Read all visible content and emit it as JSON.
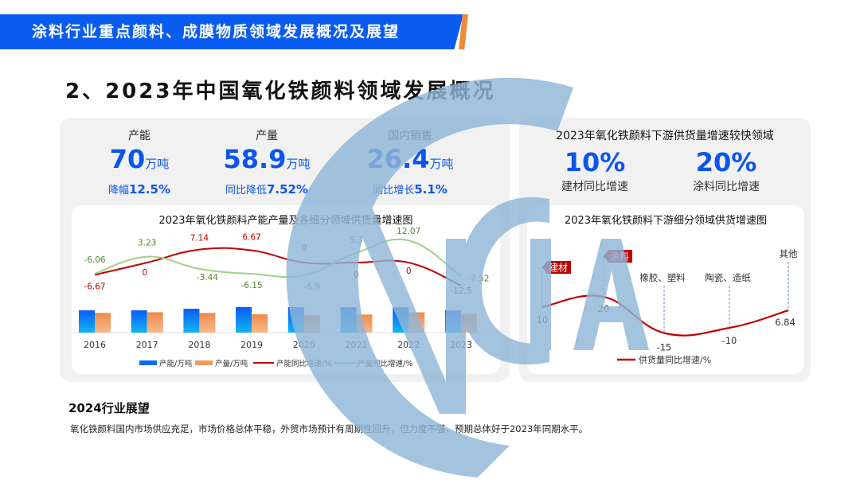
{
  "banner": {
    "text": "涂料行业重点颜料、成膜物质领域发展概况及展望"
  },
  "title": "2、2023年中国氧化铁颜料领域发展概况",
  "kpis": [
    {
      "label": "产能",
      "value": "70",
      "unit": "万吨",
      "sub_prefix": "降幅",
      "sub_value": "12.5%"
    },
    {
      "label": "产量",
      "value": "58.9",
      "unit": "万吨",
      "sub_prefix": "同比降低",
      "sub_value": "7.52%"
    },
    {
      "label": "国内销售",
      "value": "26.4",
      "unit": "万吨",
      "sub_prefix": "同比增长",
      "sub_value": "5.1%"
    }
  ],
  "right_panel": {
    "title": "2023年氧化铁颜料下游供货量增速较快领域",
    "kpis": [
      {
        "value": "10%",
        "label": "建材同比增速"
      },
      {
        "value": "20%",
        "label": "涂料同比增速"
      }
    ]
  },
  "outlook": {
    "heading": "2024行业展望",
    "text": "氧化铁颜料国内市场供应充足，市场价格总体平稳，外贸市场预计有周期性回升，但力度不强，预期总体好于2023年同期水平。"
  },
  "watermark": {
    "text": "CNCIA",
    "color": "#8fb6d8"
  },
  "colors": {
    "accent": "#0a5cf0",
    "orange": "#f08a3a",
    "red": "#c00000",
    "green": "#9fd08a"
  },
  "chart_data": [
    {
      "type": "bar+line",
      "title": "2023年氧化铁颜料产能产量及各细分领域供货量增速图",
      "categories": [
        "2016",
        "2017",
        "2018",
        "2019",
        "2020",
        "2021",
        "2022",
        "2023"
      ],
      "series": [
        {
          "name": "产能/万吨",
          "type": "bar",
          "color": "#0a6cf5",
          "values": [
            70,
            70,
            75,
            80,
            80,
            80,
            80,
            70
          ]
        },
        {
          "name": "产量/万吨",
          "type": "bar",
          "color": "#f39a5c",
          "values": [
            62,
            64,
            61.8,
            58,
            54,
            56.8,
            63.7,
            58.9
          ]
        },
        {
          "name": "产能同比增速/%",
          "type": "line",
          "color": "#c00000",
          "values": [
            -6.67,
            0,
            7.14,
            6.67,
            0,
            0,
            0,
            -12.5
          ]
        },
        {
          "name": "产量同比增速/%",
          "type": "line",
          "color": "#9fd08a",
          "values": [
            -6.06,
            3.23,
            -3.44,
            -6.15,
            -6.9,
            5.3,
            12.07,
            -7.52
          ]
        }
      ],
      "legend": "bottom",
      "grid": false
    },
    {
      "type": "line",
      "title": "2023年氧化铁颜料下游细分领域供货增速图",
      "categories": [
        "建材",
        "涂料",
        "橡胶、塑料",
        "陶瓷、造纸",
        "其他"
      ],
      "highlighted": [
        "建材",
        "涂料"
      ],
      "series": [
        {
          "name": "供货量同比增速/%",
          "color": "#c00000",
          "values": [
            10,
            20,
            -15,
            -10,
            6.84
          ]
        }
      ],
      "value_labels": [
        "10",
        "20",
        "-15",
        "-10",
        "6.84"
      ],
      "legend": "bottom",
      "grid": false
    }
  ]
}
